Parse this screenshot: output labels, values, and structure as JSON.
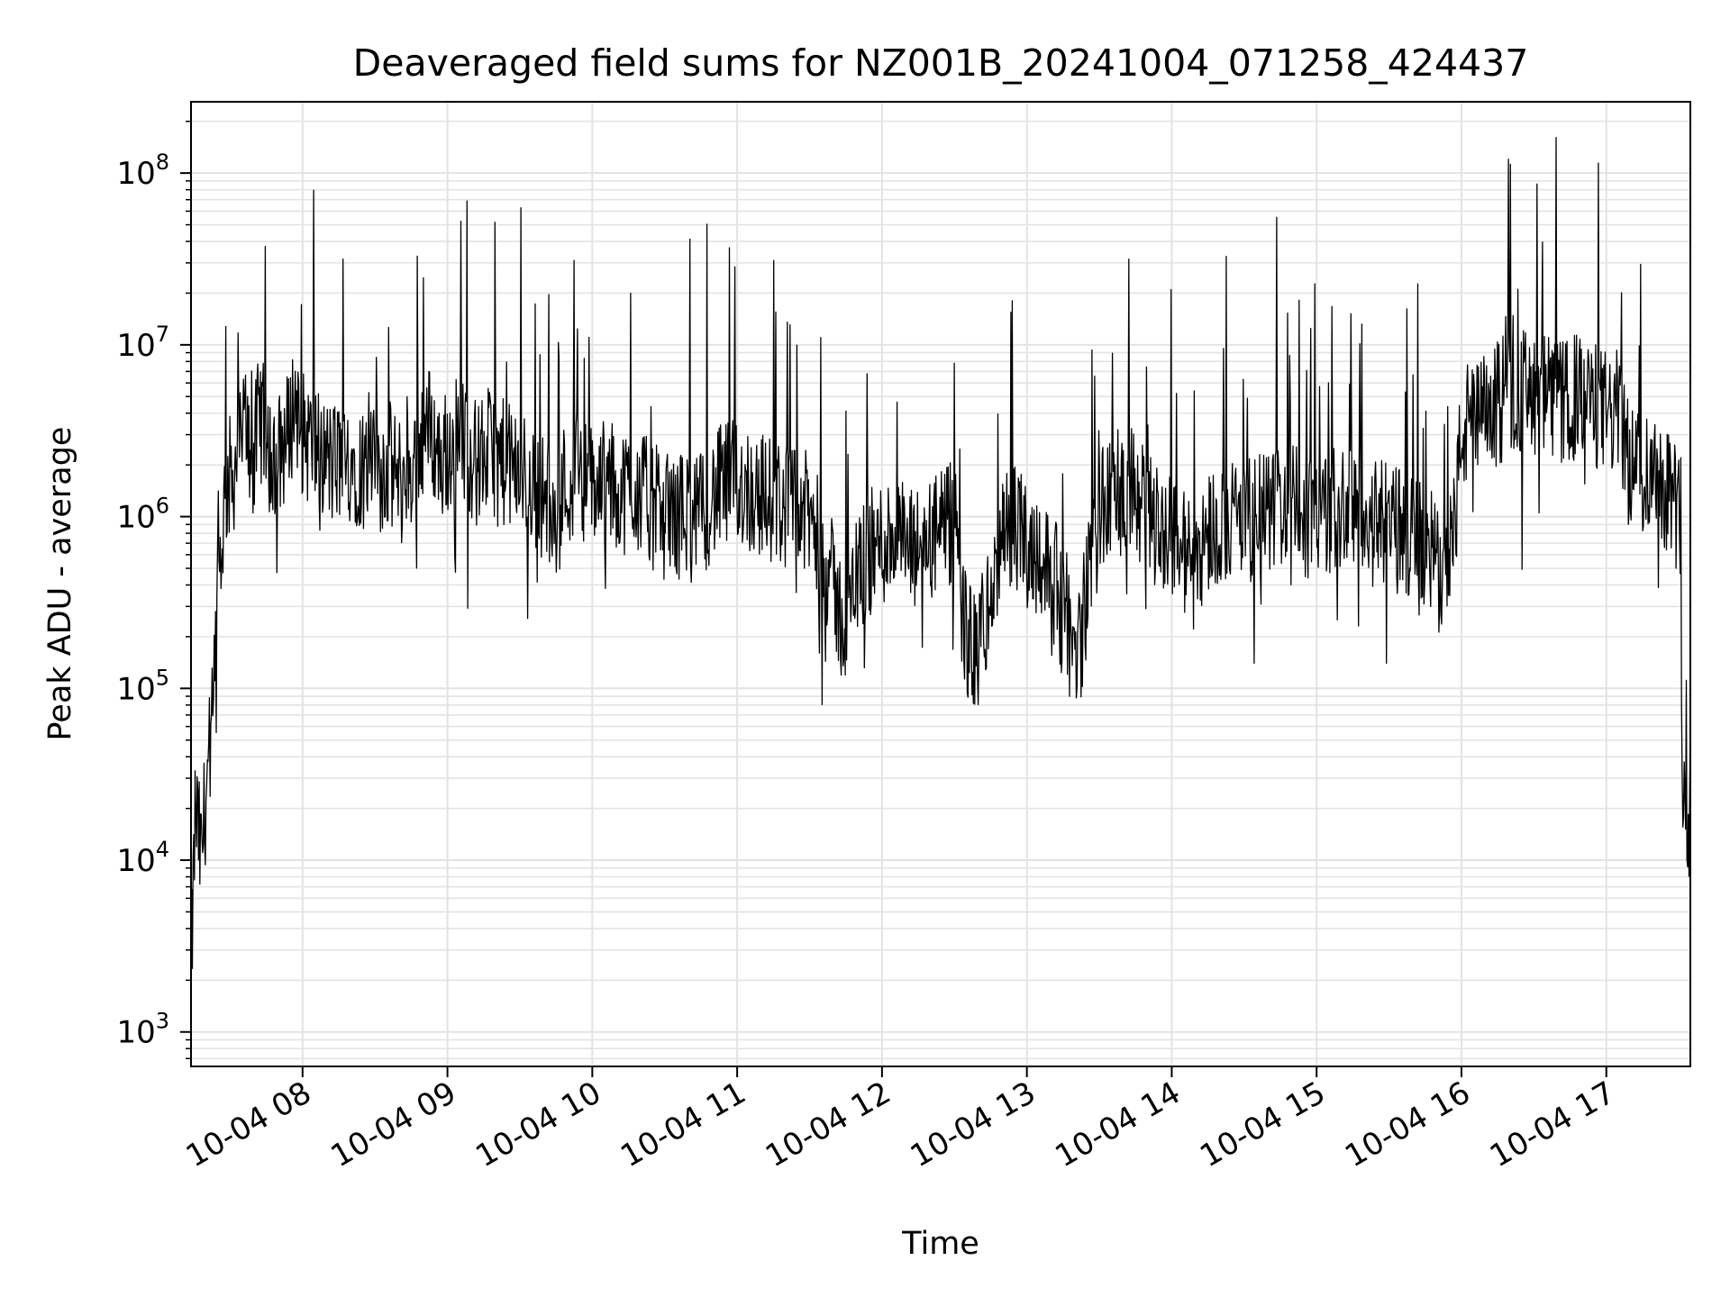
{
  "chart_data": {
    "type": "line",
    "title": "Deaveraged field sums for NZ001B_20241004_071258_424437",
    "xlabel": "Time",
    "ylabel": "Peak ADU - average",
    "x_ticks": [
      "10-04 08",
      "10-04 09",
      "10-04 10",
      "10-04 11",
      "10-04 12",
      "10-04 13",
      "10-04 14",
      "10-04 15",
      "10-04 16",
      "10-04 17"
    ],
    "x_tick_hours": [
      8,
      9,
      10,
      11,
      12,
      13,
      14,
      15,
      16,
      17
    ],
    "xlim_hours": [
      7.23,
      17.58
    ],
    "y_scale": "log",
    "ylim": [
      630,
      260000000
    ],
    "y_ticks": [
      1000,
      10000,
      100000,
      1000000,
      10000000,
      100000000
    ],
    "y_tick_labels": [
      {
        "base": "10",
        "exp": "3"
      },
      {
        "base": "10",
        "exp": "4"
      },
      {
        "base": "10",
        "exp": "5"
      },
      {
        "base": "10",
        "exp": "6"
      },
      {
        "base": "10",
        "exp": "7"
      },
      {
        "base": "10",
        "exp": "8"
      }
    ],
    "grid": true,
    "line_color": "#000000",
    "grid_color": "#e3e3e3",
    "series": [
      {
        "x_hours": [
          7.23,
          7.26,
          7.3,
          7.34,
          7.38,
          7.42,
          7.47,
          7.52,
          7.56,
          7.61,
          7.66,
          7.7,
          7.75,
          7.8,
          7.85,
          7.9,
          7.95,
          8.0,
          8.1,
          8.2,
          8.3,
          8.4,
          8.5,
          8.6,
          8.7,
          8.8,
          8.85,
          8.9,
          8.95,
          9.0,
          9.1,
          9.2,
          9.3,
          9.4,
          9.5,
          9.6,
          9.7,
          9.75,
          9.8,
          9.9,
          10.0,
          10.1,
          10.2,
          10.3,
          10.35,
          10.4,
          10.5,
          10.6,
          10.65,
          10.7,
          10.8,
          10.9,
          11.0,
          11.1,
          11.2,
          11.3,
          11.4,
          11.5,
          11.6,
          11.7,
          11.75,
          11.8,
          11.9,
          12.0,
          12.1,
          12.2,
          12.3,
          12.4,
          12.5,
          12.55,
          12.6,
          12.65,
          12.7,
          12.75,
          12.8,
          12.85,
          12.9,
          13.0,
          13.1,
          13.2,
          13.25,
          13.3,
          13.35,
          13.4,
          13.5,
          13.6,
          13.7,
          13.8,
          13.9,
          14.0,
          14.05,
          14.1,
          14.15,
          14.2,
          14.3,
          14.4,
          14.5,
          14.6,
          14.7,
          14.8,
          14.9,
          15.0,
          15.1,
          15.2,
          15.3,
          15.35,
          15.4,
          15.5,
          15.6,
          15.7,
          15.8,
          15.85,
          15.9,
          15.95,
          16.0,
          16.05,
          16.1,
          16.2,
          16.3,
          16.4,
          16.5,
          16.6,
          16.7,
          16.8,
          16.9,
          17.0,
          17.1,
          17.15,
          17.2,
          17.3,
          17.35,
          17.4,
          17.45,
          17.5,
          17.53,
          17.56,
          17.58
        ],
        "values": [
          2000,
          20000,
          10000,
          30000,
          60000,
          400000,
          1500000,
          1800000,
          2500000,
          3500000,
          2000000,
          4000000,
          3000000,
          1800000,
          2500000,
          3000000,
          5000000,
          3000000,
          2500000,
          2000000,
          2200000,
          2000000,
          1800000,
          2000000,
          1500000,
          2500000,
          3500000,
          3000000,
          2000000,
          2500000,
          3000000,
          2000000,
          2500000,
          2000000,
          1800000,
          1500000,
          1200000,
          800000,
          1500000,
          1800000,
          1500000,
          1600000,
          1400000,
          1500000,
          1300000,
          1200000,
          1000000,
          1000000,
          1100000,
          900000,
          1200000,
          1500000,
          1600000,
          1400000,
          1300000,
          1200000,
          1100000,
          1000000,
          600000,
          300000,
          200000,
          400000,
          600000,
          700000,
          800000,
          600000,
          700000,
          800000,
          900000,
          300000,
          180000,
          150000,
          250000,
          300000,
          500000,
          800000,
          900000,
          700000,
          600000,
          400000,
          250000,
          200000,
          150000,
          300000,
          1000000,
          1300000,
          1500000,
          1200000,
          900000,
          800000,
          700000,
          600000,
          500000,
          700000,
          900000,
          1000000,
          900000,
          1000000,
          1100000,
          1200000,
          1000000,
          1000000,
          1100000,
          1200000,
          1100000,
          1000000,
          900000,
          900000,
          800000,
          700000,
          600000,
          500000,
          700000,
          800000,
          3000000,
          3500000,
          3500000,
          4000000,
          5000000,
          5500000,
          5000000,
          5000000,
          4500000,
          5000000,
          4500000,
          4000000,
          4000000,
          2000000,
          2000000,
          1800000,
          2000000,
          1500000,
          1500000,
          1000000,
          30000,
          20000,
          15000
        ]
      }
    ]
  }
}
